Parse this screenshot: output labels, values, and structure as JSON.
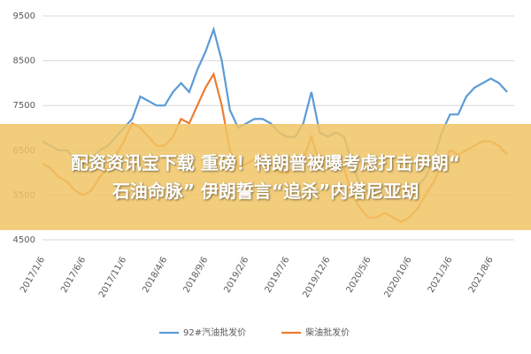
{
  "chart_data": {
    "type": "line",
    "banner": [
      "配资资讯宝下载 重磅！特朗普被曝考虑打击伊朗“",
      "石油命脉” 伊朗誓言“追杀”内塔尼亚胡"
    ],
    "categories": [
      "2017/1/6",
      null,
      null,
      null,
      null,
      "2017/6/6",
      null,
      null,
      null,
      null,
      "2017/11/6",
      null,
      null,
      null,
      null,
      "2018/4/6",
      null,
      null,
      null,
      null,
      "2018/9/6",
      null,
      null,
      null,
      null,
      "2019/2/6",
      null,
      null,
      null,
      null,
      "2019/7/6",
      null,
      null,
      null,
      null,
      "2019/12/6",
      null,
      null,
      null,
      null,
      "2020/5/6",
      null,
      null,
      null,
      null,
      "2020/10/6",
      null,
      null,
      null,
      null,
      "2021/3/6",
      null,
      null,
      null,
      null,
      "2021/8/6",
      null,
      null
    ],
    "series": [
      {
        "name": "92#汽油批发价",
        "color": "#5b9bd5",
        "values": [
          6700,
          6600,
          6500,
          6500,
          6300,
          6200,
          6300,
          6500,
          6600,
          6800,
          7000,
          7200,
          7700,
          7600,
          7500,
          7500,
          7800,
          8000,
          7800,
          8300,
          8700,
          9200,
          8500,
          7400,
          7000,
          7100,
          7200,
          7200,
          7100,
          6900,
          6800,
          6800,
          7100,
          7800,
          6900,
          6800,
          6900,
          6800,
          6200,
          5700,
          5600,
          5600,
          5700,
          5600,
          5500,
          5600,
          5700,
          5900,
          6300,
          6900,
          7300,
          7300,
          7700,
          7900,
          8000,
          8100,
          8000,
          7800
        ]
      },
      {
        "name": "柴油批发价",
        "color": "#ed7d31",
        "values": [
          6200,
          6100,
          5900,
          5800,
          5600,
          5500,
          5600,
          5900,
          6100,
          6400,
          6700,
          7100,
          7000,
          6800,
          6600,
          6600,
          6800,
          7200,
          7100,
          7500,
          7900,
          8200,
          7500,
          6500,
          6100,
          6200,
          6300,
          6300,
          6200,
          6000,
          6000,
          6100,
          6300,
          6800,
          6200,
          6100,
          6200,
          6100,
          5500,
          5200,
          5000,
          5000,
          5100,
          5000,
          4900,
          5000,
          5200,
          5500,
          5800,
          6200,
          6500,
          6400,
          6500,
          6600,
          6700,
          6700,
          6600,
          6400
        ]
      }
    ],
    "ylim": [
      4500,
      9500
    ],
    "yticks": [
      4500,
      5500,
      6500,
      7500,
      8500,
      9500
    ],
    "grid": true,
    "legend": "bottom"
  }
}
